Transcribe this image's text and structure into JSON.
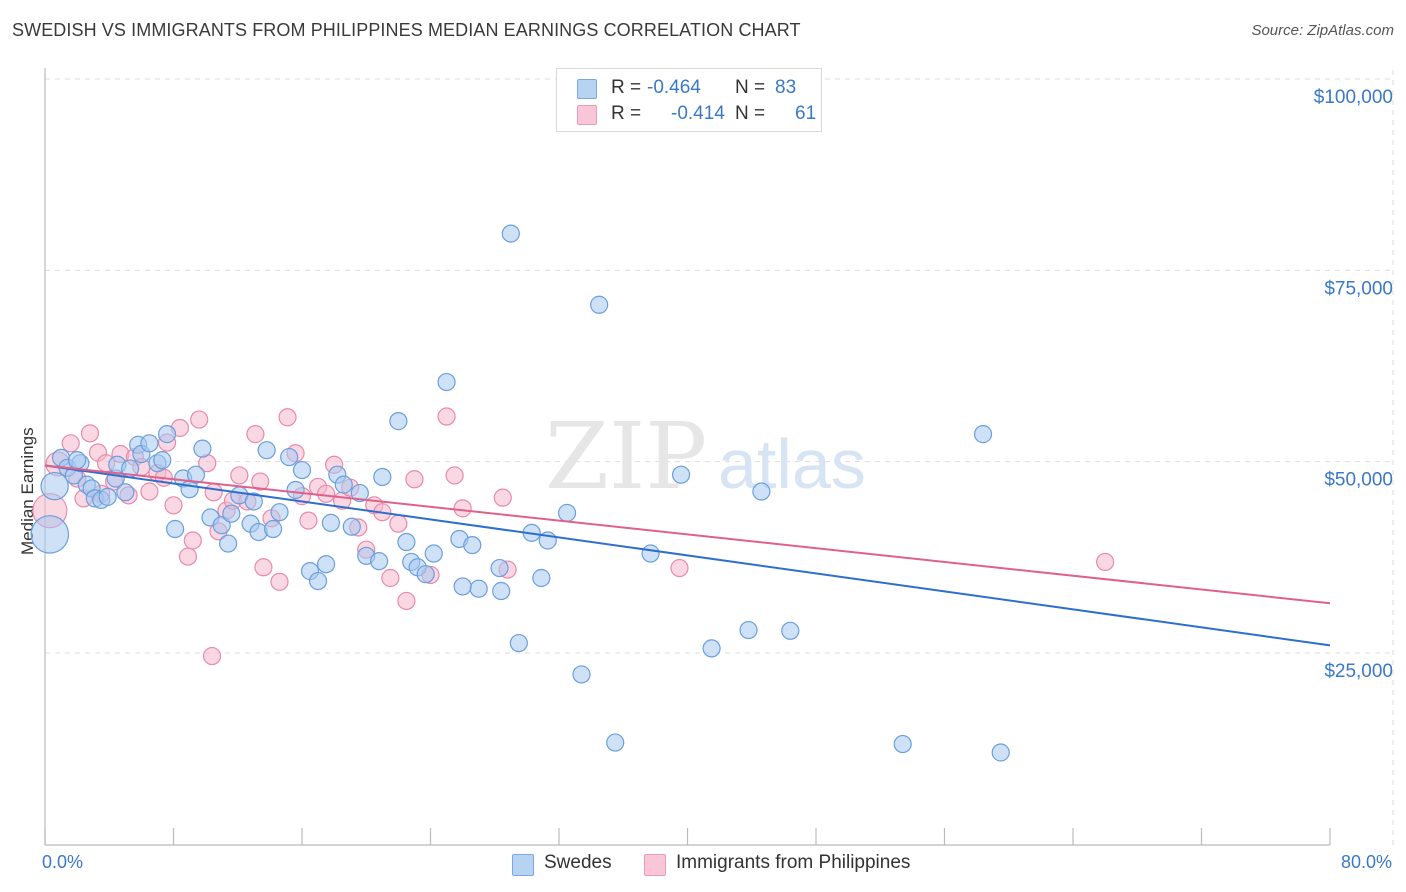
{
  "title": "SWEDISH VS IMMIGRANTS FROM PHILIPPINES MEDIAN EARNINGS CORRELATION CHART",
  "source": "Source: ZipAtlas.com",
  "watermark": {
    "zip": "ZIP",
    "atlas": "atlas"
  },
  "legend": {
    "rows": [
      {
        "r_label": "R =",
        "r_value": "-0.464",
        "n_label": "N =",
        "n_value": "83"
      },
      {
        "r_label": "R =",
        "r_value": "-0.414",
        "n_label": "N =",
        "n_value": "61"
      }
    ]
  },
  "colors": {
    "swedes_fill": "#a8c8f0",
    "swedes_stroke": "#6a9fdc",
    "swedes_line": "#2e6fcc",
    "phil_fill": "#f5b8cc",
    "phil_stroke": "#e88aaa",
    "phil_line": "#e0608c",
    "axis_text": "#3a78c9",
    "grid": "#dddddd"
  },
  "chart_data": {
    "type": "scatter",
    "title": "SWEDISH VS IMMIGRANTS FROM PHILIPPINES MEDIAN EARNINGS CORRELATION CHART",
    "xlabel": "",
    "ylabel": "Median Earnings",
    "xlim": [
      0,
      80
    ],
    "ylim": [
      0,
      105000
    ],
    "x_tick_labels": [
      "0.0%",
      "80.0%"
    ],
    "y_ticks": [
      25000,
      50000,
      75000,
      100000
    ],
    "y_tick_labels": [
      "$25,000",
      "$50,000",
      "$75,000",
      "$100,000"
    ],
    "grid": true,
    "legend_position": "bottom",
    "series": [
      {
        "name": "Swedes",
        "r": -0.464,
        "n": 83,
        "trend": {
          "x": [
            0,
            80
          ],
          "y": [
            49500,
            26000
          ]
        },
        "points": [
          [
            0.3,
            40500,
            2.2
          ],
          [
            0.6,
            46800,
            1.6
          ],
          [
            1.0,
            50500,
            1.0
          ],
          [
            1.4,
            49200,
            1.0
          ],
          [
            1.8,
            48200,
            1.0
          ],
          [
            2.2,
            49800,
            1.0
          ],
          [
            2.6,
            47000,
            1.0
          ],
          [
            2.9,
            46500,
            1.0
          ],
          [
            3.1,
            45200,
            1.0
          ],
          [
            3.5,
            45000,
            1.0
          ],
          [
            3.9,
            45400,
            1.0
          ],
          [
            4.4,
            47800,
            1.0
          ],
          [
            4.5,
            49600,
            1.0
          ],
          [
            5.0,
            46000,
            1.0
          ],
          [
            5.3,
            49100,
            1.0
          ],
          [
            5.8,
            52200,
            1.0
          ],
          [
            6.0,
            51000,
            1.0
          ],
          [
            6.5,
            52400,
            1.0
          ],
          [
            7.0,
            49800,
            1.0
          ],
          [
            7.3,
            50200,
            1.0
          ],
          [
            7.6,
            53600,
            1.0
          ],
          [
            8.1,
            41200,
            1.0
          ],
          [
            8.6,
            47800,
            1.0
          ],
          [
            9.0,
            46400,
            1.0
          ],
          [
            9.4,
            48300,
            1.0
          ],
          [
            9.8,
            51700,
            1.0
          ],
          [
            10.3,
            42700,
            1.0
          ],
          [
            11.0,
            41700,
            1.0
          ],
          [
            11.4,
            39300,
            1.0
          ],
          [
            11.6,
            43200,
            1.0
          ],
          [
            12.1,
            45600,
            1.0
          ],
          [
            12.8,
            41900,
            1.0
          ],
          [
            13.3,
            40800,
            1.0
          ],
          [
            13.8,
            51500,
            1.0
          ],
          [
            14.2,
            41200,
            1.0
          ],
          [
            14.6,
            43400,
            1.0
          ],
          [
            15.2,
            50600,
            1.0
          ],
          [
            15.6,
            46300,
            1.0
          ],
          [
            16.0,
            48900,
            1.0
          ],
          [
            16.5,
            35700,
            1.0
          ],
          [
            17.0,
            34400,
            1.0
          ],
          [
            17.5,
            36600,
            1.0
          ],
          [
            17.8,
            42000,
            1.0
          ],
          [
            18.2,
            48300,
            1.0
          ],
          [
            18.6,
            47000,
            1.0
          ],
          [
            19.1,
            41500,
            1.0
          ],
          [
            19.6,
            45900,
            1.0
          ],
          [
            20.0,
            37700,
            1.0
          ],
          [
            20.8,
            37000,
            1.0
          ],
          [
            21.0,
            48000,
            1.0
          ],
          [
            22.0,
            55300,
            1.0
          ],
          [
            22.5,
            39500,
            1.0
          ],
          [
            22.8,
            36900,
            1.0
          ],
          [
            23.2,
            36200,
            1.0
          ],
          [
            23.7,
            35300,
            1.0
          ],
          [
            24.2,
            38000,
            1.0
          ],
          [
            25.0,
            60400,
            1.0
          ],
          [
            25.8,
            39900,
            1.0
          ],
          [
            26.6,
            39100,
            1.0
          ],
          [
            27.0,
            33400,
            1.0
          ],
          [
            28.3,
            36100,
            1.0
          ],
          [
            28.4,
            33100,
            1.0
          ],
          [
            29.0,
            79800,
            1.0
          ],
          [
            29.5,
            26300,
            1.0
          ],
          [
            30.3,
            40700,
            1.0
          ],
          [
            30.9,
            34800,
            1.0
          ],
          [
            31.3,
            39700,
            1.0
          ],
          [
            32.5,
            43300,
            1.0
          ],
          [
            33.4,
            22200,
            1.0
          ],
          [
            34.5,
            70500,
            1.0
          ],
          [
            35.5,
            13300,
            1.0
          ],
          [
            37.7,
            38000,
            1.0
          ],
          [
            39.6,
            48300,
            1.0
          ],
          [
            41.5,
            25600,
            1.0
          ],
          [
            43.8,
            28000,
            1.0
          ],
          [
            44.6,
            46100,
            1.0
          ],
          [
            46.4,
            27900,
            1.0
          ],
          [
            53.4,
            13100,
            1.0
          ],
          [
            58.4,
            53600,
            1.0
          ],
          [
            59.5,
            12000,
            1.0
          ],
          [
            2.0,
            50200,
            1.0
          ],
          [
            13.0,
            44800,
            1.0
          ],
          [
            26.0,
            33700,
            1.0
          ]
        ]
      },
      {
        "name": "Immigrants from Philippines",
        "r": -0.414,
        "n": 61,
        "trend": {
          "x": [
            0,
            80
          ],
          "y": [
            49500,
            31500
          ]
        },
        "points": [
          [
            0.3,
            43600,
            2.0
          ],
          [
            0.8,
            49700,
            1.4
          ],
          [
            1.6,
            52400,
            1.0
          ],
          [
            2.0,
            47800,
            1.0
          ],
          [
            2.4,
            45200,
            1.0
          ],
          [
            2.8,
            53700,
            1.0
          ],
          [
            3.3,
            51200,
            1.0
          ],
          [
            3.8,
            49800,
            1.0
          ],
          [
            4.3,
            47400,
            1.0
          ],
          [
            4.7,
            51000,
            1.0
          ],
          [
            5.2,
            45600,
            1.0
          ],
          [
            5.6,
            50600,
            1.0
          ],
          [
            6.0,
            49300,
            1.0
          ],
          [
            6.5,
            46100,
            1.0
          ],
          [
            7.0,
            48500,
            1.0
          ],
          [
            7.6,
            52500,
            1.0
          ],
          [
            8.0,
            44300,
            1.0
          ],
          [
            8.4,
            54400,
            1.0
          ],
          [
            8.9,
            37600,
            1.0
          ],
          [
            9.2,
            39700,
            1.0
          ],
          [
            9.6,
            55500,
            1.0
          ],
          [
            10.1,
            49800,
            1.0
          ],
          [
            10.5,
            46000,
            1.0
          ],
          [
            10.8,
            40900,
            1.0
          ],
          [
            11.3,
            43600,
            1.0
          ],
          [
            11.7,
            44900,
            1.0
          ],
          [
            12.1,
            48200,
            1.0
          ],
          [
            12.6,
            44800,
            1.0
          ],
          [
            13.1,
            53600,
            1.0
          ],
          [
            13.6,
            36200,
            1.0
          ],
          [
            14.1,
            42600,
            1.0
          ],
          [
            14.6,
            34300,
            1.0
          ],
          [
            15.1,
            55800,
            1.0
          ],
          [
            15.6,
            51100,
            1.0
          ],
          [
            16.0,
            45500,
            1.0
          ],
          [
            16.4,
            42300,
            1.0
          ],
          [
            17.0,
            46700,
            1.0
          ],
          [
            17.5,
            45800,
            1.0
          ],
          [
            18.0,
            49600,
            1.0
          ],
          [
            18.5,
            44900,
            1.0
          ],
          [
            19.0,
            46600,
            1.0
          ],
          [
            19.5,
            41400,
            1.0
          ],
          [
            20.0,
            38500,
            1.0
          ],
          [
            20.5,
            44300,
            1.0
          ],
          [
            21.0,
            43400,
            1.0
          ],
          [
            21.5,
            34800,
            1.0
          ],
          [
            22.0,
            41900,
            1.0
          ],
          [
            22.5,
            31800,
            1.0
          ],
          [
            23.0,
            47700,
            1.0
          ],
          [
            24.0,
            35200,
            1.0
          ],
          [
            25.0,
            55900,
            1.0
          ],
          [
            25.5,
            48200,
            1.0
          ],
          [
            26.0,
            43900,
            1.0
          ],
          [
            28.5,
            45300,
            1.0
          ],
          [
            28.8,
            35900,
            1.0
          ],
          [
            10.4,
            24600,
            1.0
          ],
          [
            39.5,
            36100,
            1.0
          ],
          [
            66.0,
            36900,
            1.0
          ],
          [
            7.4,
            47900,
            1.0
          ],
          [
            13.4,
            47400,
            1.0
          ],
          [
            3.5,
            45800,
            1.0
          ]
        ]
      }
    ]
  },
  "bottom_legend": [
    "Swedes",
    "Immigrants from Philippines"
  ]
}
